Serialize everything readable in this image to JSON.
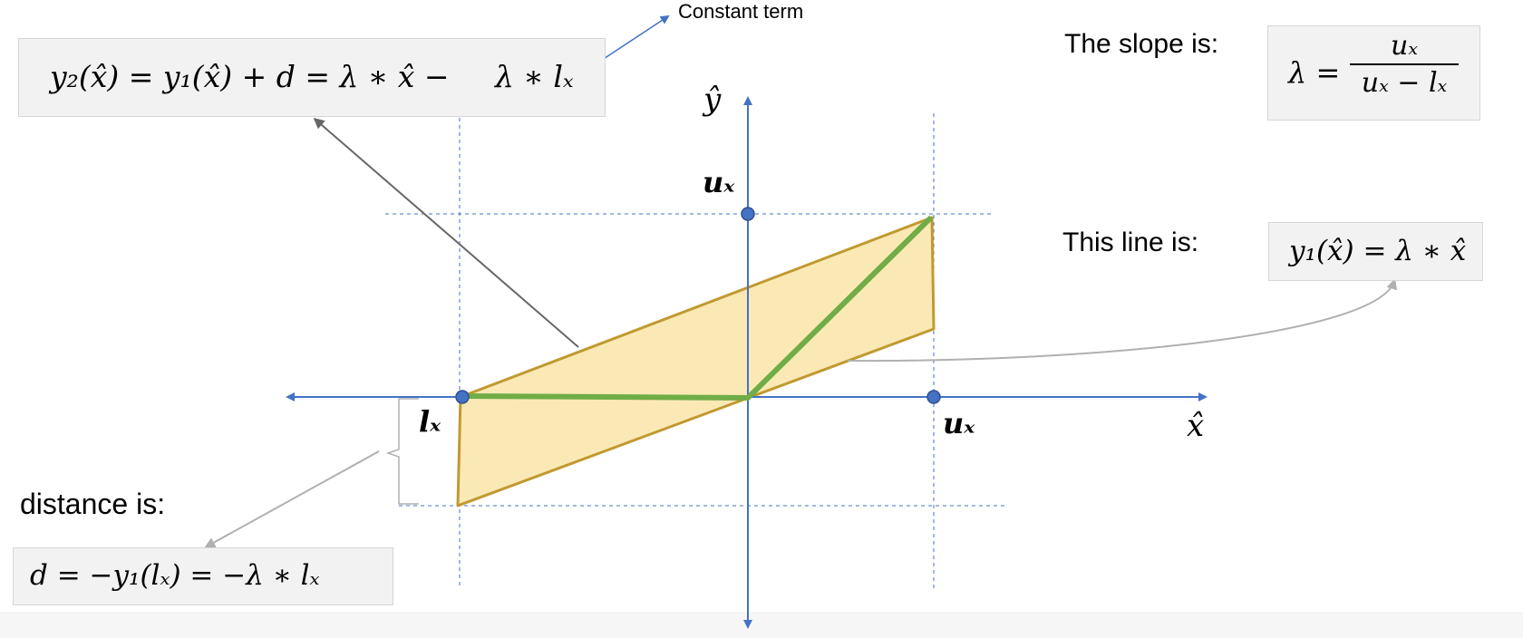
{
  "annotations": {
    "constant_term": "Constant term",
    "slope_label": "The slope is:",
    "line_label": "This line is:",
    "distance_label": "distance is:"
  },
  "equations": {
    "y2_lhs": "y₂(x̂) = y₁(x̂) + d  = λ ∗ x̂ −",
    "y2_boxed": "λ ∗ lₓ",
    "slope_lhs": "λ =",
    "slope_num": "uₓ",
    "slope_den": "uₓ − lₓ",
    "line_eq": "y₁(x̂) = λ ∗ x̂",
    "distance_eq": "d = −y₁(lₓ) = −λ ∗ lₓ"
  },
  "axis_labels": {
    "x_axis": "x̂",
    "y_axis": "ŷ",
    "ux_on_y": "uₓ",
    "ux_on_x": "uₓ",
    "lx_on_x": "lₓ"
  },
  "colors": {
    "axis": "#4472c4",
    "region_fill": "#fbe9b5",
    "region_stroke": "#c09a30",
    "relu_line": "#70ad47",
    "gray_arrow": "#b0b0b0",
    "dark_arrow": "#666666"
  }
}
